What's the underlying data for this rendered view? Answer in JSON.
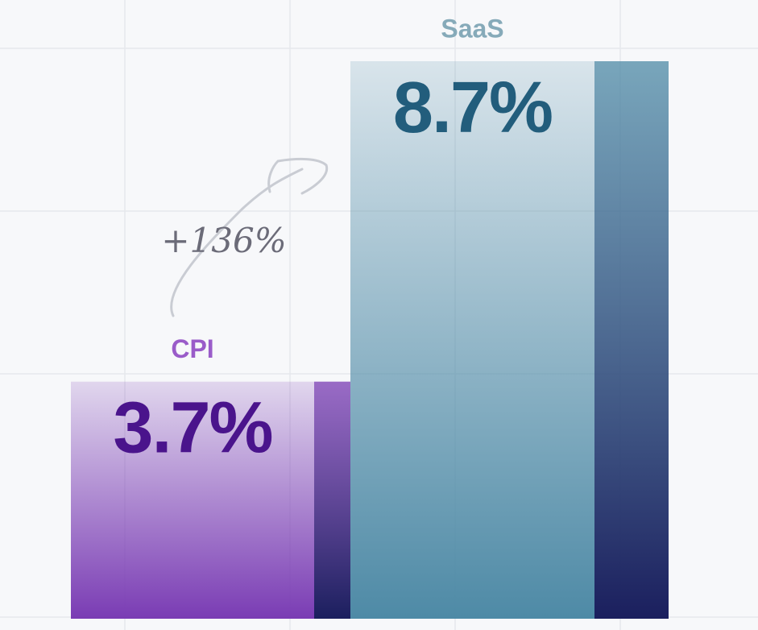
{
  "chart_data": {
    "type": "bar",
    "categories": [
      "CPI",
      "SaaS"
    ],
    "values": [
      3.7,
      8.7
    ],
    "value_labels": [
      "3.7%",
      "8.7%"
    ],
    "colors": [
      "#7a3cb4",
      "#4e8aa6"
    ],
    "annotation": "+136%"
  }
}
